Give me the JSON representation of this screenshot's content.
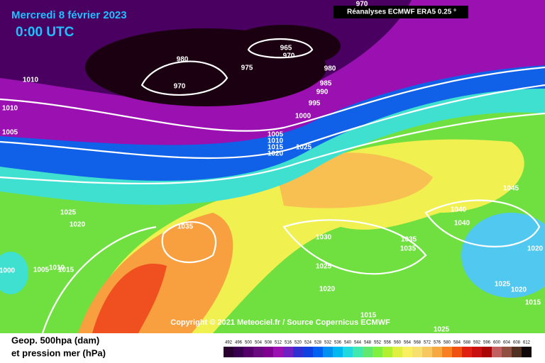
{
  "header": {
    "date": "Mercredi 8 février 2023",
    "time": "0:00 UTC",
    "source_label": "Réanalyses ECMWF ERA5 0.25 °"
  },
  "copyright": "Copyright © 2021 Meteociel.fr / Source Copernicus ECMWF",
  "legend": {
    "line1": "Geop. 500hpa (dam)",
    "line2": "et pression mer (hPa)",
    "scale": {
      "ticks": [
        492,
        496,
        500,
        504,
        508,
        512,
        516,
        520,
        524,
        528,
        532,
        536,
        540,
        544,
        548,
        552,
        556,
        560,
        564,
        568,
        572,
        576,
        580,
        584,
        588,
        592,
        596,
        600,
        604,
        608,
        612
      ],
      "colors": [
        "#2a0030",
        "#3a0050",
        "#55006a",
        "#6a0a80",
        "#800090",
        "#9a10b0",
        "#7020c0",
        "#3030d0",
        "#1040e0",
        "#0060f0",
        "#0090f0",
        "#00b8f0",
        "#20d8e0",
        "#40e8b0",
        "#60e870",
        "#80f040",
        "#b0f030",
        "#e0f040",
        "#f8f060",
        "#f8e070",
        "#f8c860",
        "#f8a840",
        "#f88020",
        "#f05010",
        "#e02010",
        "#c81010",
        "#a80808",
        "#c06060",
        "#905040",
        "#503020",
        "#100808"
      ]
    }
  },
  "isobar_labels": [
    970,
    965,
    970,
    980,
    975,
    970,
    980,
    1010,
    985,
    990,
    995,
    1000,
    1010,
    1005,
    1005,
    1010,
    1015,
    1020,
    1025,
    1025,
    1020,
    1035,
    1030,
    1035,
    1035,
    1040,
    1040,
    1045,
    1020,
    1025,
    1020,
    1025,
    1020,
    1015,
    1015,
    1025,
    1000,
    1005,
    1010,
    1015
  ]
}
